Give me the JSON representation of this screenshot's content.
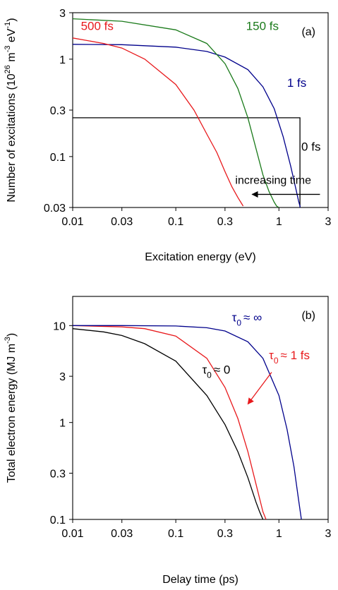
{
  "chart_data": [
    {
      "type": "line",
      "panel_label": "(a)",
      "xlabel": "Excitation energy (eV)",
      "ylabel_parts": [
        "Number of excitations (10",
        "26",
        " m",
        "-3",
        " eV",
        "-1",
        ")"
      ],
      "x_scale": "log",
      "y_scale": "log",
      "xlim": [
        0.01,
        3
      ],
      "ylim": [
        0.03,
        3
      ],
      "xticks": [
        {
          "value": 0.01,
          "label": "0.01"
        },
        {
          "value": 0.03,
          "label": "0.03"
        },
        {
          "value": 0.1,
          "label": "0.1"
        },
        {
          "value": 0.3,
          "label": "0.3"
        },
        {
          "value": 1,
          "label": "1"
        },
        {
          "value": 3,
          "label": "3"
        }
      ],
      "yticks": [
        {
          "value": 0.03,
          "label": "0.03"
        },
        {
          "value": 0.1,
          "label": "0.1"
        },
        {
          "value": 0.3,
          "label": "0.3"
        },
        {
          "value": 1,
          "label": "1"
        },
        {
          "value": 3,
          "label": "3"
        }
      ],
      "series": [
        {
          "name": "0 fs",
          "color": "#000000",
          "label_anchor": {
            "x": 1.65,
            "y": 0.115
          },
          "x": [
            0.01,
            1.6,
            1.6
          ],
          "y": [
            0.25,
            0.25,
            0.03
          ]
        },
        {
          "name": "1 fs",
          "color": "#00008b",
          "label_anchor": {
            "x": 1.2,
            "y": 0.52
          },
          "x": [
            0.01,
            0.03,
            0.1,
            0.2,
            0.3,
            0.5,
            0.7,
            0.9,
            1.1,
            1.3,
            1.45,
            1.55,
            1.6,
            1.6
          ],
          "y": [
            1.42,
            1.41,
            1.33,
            1.2,
            1.05,
            0.78,
            0.52,
            0.31,
            0.16,
            0.08,
            0.048,
            0.035,
            0.031,
            0.03
          ]
        },
        {
          "name": "150 fs",
          "color": "#1a7a1a",
          "label_anchor": {
            "x": 0.48,
            "y": 2.0
          },
          "x": [
            0.01,
            0.03,
            0.1,
            0.2,
            0.3,
            0.4,
            0.5,
            0.6,
            0.7,
            0.8,
            0.9,
            0.95,
            1.0
          ],
          "y": [
            2.6,
            2.45,
            2.0,
            1.45,
            0.9,
            0.5,
            0.25,
            0.12,
            0.065,
            0.044,
            0.034,
            0.031,
            0.03
          ]
        },
        {
          "name": "500 fs",
          "color": "#e8191c",
          "label_anchor": {
            "x": 0.012,
            "y": 2.0
          },
          "x": [
            0.01,
            0.02,
            0.03,
            0.05,
            0.1,
            0.15,
            0.2,
            0.25,
            0.3,
            0.35,
            0.4,
            0.45
          ],
          "y": [
            1.65,
            1.45,
            1.3,
            1.0,
            0.55,
            0.3,
            0.17,
            0.11,
            0.07,
            0.049,
            0.038,
            0.031
          ]
        }
      ],
      "annotation": {
        "text": "increasing time",
        "arrow_from_x": 2.5,
        "arrow_to_x": 0.55,
        "arrow_y": 0.037
      }
    },
    {
      "type": "line",
      "panel_label": "(b)",
      "xlabel": "Delay time (ps)",
      "ylabel_parts": [
        "Total electron energy (MJ m",
        "-3",
        ")"
      ],
      "x_scale": "log",
      "y_scale": "log",
      "xlim": [
        0.01,
        3
      ],
      "ylim": [
        0.1,
        20
      ],
      "xticks": [
        {
          "value": 0.01,
          "label": "0.01"
        },
        {
          "value": 0.03,
          "label": "0.03"
        },
        {
          "value": 0.1,
          "label": "0.1"
        },
        {
          "value": 0.3,
          "label": "0.3"
        },
        {
          "value": 1,
          "label": "1"
        },
        {
          "value": 3,
          "label": "3"
        }
      ],
      "yticks": [
        {
          "value": 0.1,
          "label": "0.1"
        },
        {
          "value": 0.3,
          "label": "0.3"
        },
        {
          "value": 1,
          "label": "1"
        },
        {
          "value": 3,
          "label": "3"
        },
        {
          "value": 10,
          "label": "10"
        }
      ],
      "series": [
        {
          "name": "τ0 ≈ 0",
          "label_parts": [
            "τ",
            "0",
            "≈ 0"
          ],
          "color": "#000000",
          "label_anchor": {
            "x": 0.18,
            "y": 3.2
          },
          "x": [
            0.01,
            0.02,
            0.03,
            0.05,
            0.1,
            0.2,
            0.3,
            0.4,
            0.5,
            0.6,
            0.65,
            0.7
          ],
          "y": [
            9.3,
            8.6,
            7.9,
            6.5,
            4.3,
            1.9,
            0.95,
            0.5,
            0.27,
            0.15,
            0.12,
            0.1
          ]
        },
        {
          "name": "τ0 ≈ 1 fs",
          "label_parts": [
            "τ",
            "0",
            "≈ 1 fs"
          ],
          "color": "#e8191c",
          "label_anchor": {
            "x": 0.8,
            "y": 4.5
          },
          "x": [
            0.01,
            0.03,
            0.05,
            0.1,
            0.2,
            0.3,
            0.4,
            0.5,
            0.6,
            0.7,
            0.75
          ],
          "y": [
            10.0,
            9.7,
            9.3,
            7.8,
            4.6,
            2.3,
            1.1,
            0.5,
            0.23,
            0.12,
            0.1
          ]
        },
        {
          "name": "τ0 ≈ ∞",
          "label_parts": [
            "τ",
            "0",
            "≈ ∞"
          ],
          "color": "#00008b",
          "label_anchor": {
            "x": 0.35,
            "y": 11.0
          },
          "x": [
            0.01,
            0.03,
            0.1,
            0.2,
            0.3,
            0.5,
            0.7,
            1.0,
            1.2,
            1.4,
            1.55,
            1.65
          ],
          "y": [
            10.0,
            10.0,
            9.9,
            9.5,
            8.8,
            6.8,
            4.6,
            1.9,
            0.85,
            0.35,
            0.16,
            0.1
          ]
        }
      ],
      "annotation": {
        "text": "",
        "arrow_from": {
          "x": 0.85,
          "y": 3.3
        },
        "arrow_to": {
          "x": 0.5,
          "y": 1.55
        }
      }
    }
  ]
}
